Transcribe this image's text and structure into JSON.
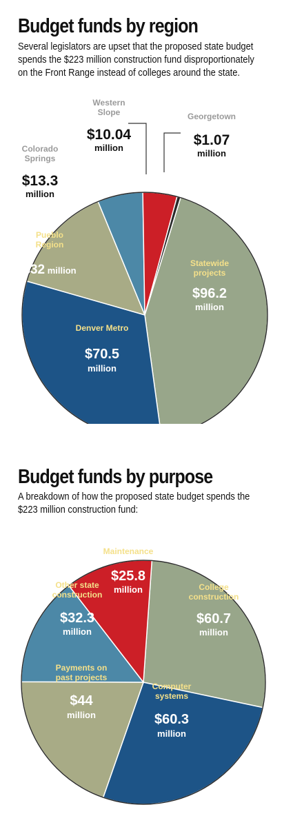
{
  "chart_data": [
    {
      "type": "pie",
      "title": "Budget funds by region",
      "subtitle": "Several legislators are upset that the proposed state budget spends the $223 million construction fund disproportionately on the Front Range instead of colleges around the state.",
      "unit": "million",
      "slices": [
        {
          "name": "Statewide projects",
          "value": 96.2,
          "value_label": "$96.2",
          "color": "#98a68a"
        },
        {
          "name": "Denver Metro",
          "value": 70.5,
          "value_label": "$70.5",
          "color": "#1d5487"
        },
        {
          "name": "Pueblo Region",
          "value": 32,
          "value_label": "$32",
          "color": "#a8ab86"
        },
        {
          "name": "Colorado Springs",
          "value": 13.3,
          "value_label": "$13.3",
          "color": "#4c88a7"
        },
        {
          "name": "Western Slope",
          "value": 10.04,
          "value_label": "$10.04",
          "color": "#cc1f27"
        },
        {
          "name": "Georgetown",
          "value": 1.07,
          "value_label": "$1.07",
          "color": "#2a2a2a"
        }
      ]
    },
    {
      "type": "pie",
      "title": "Budget funds by purpose",
      "subtitle": "A breakdown of how the proposed state budget spends the $223 million construction fund:",
      "unit": "million",
      "slices": [
        {
          "name": "College construction",
          "value": 60.7,
          "value_label": "$60.7",
          "color": "#98a68a"
        },
        {
          "name": "Computer systems",
          "value": 60.3,
          "value_label": "$60.3",
          "color": "#1d5487"
        },
        {
          "name": "Payments on past projects",
          "value": 44,
          "value_label": "$44",
          "color": "#a8ab86"
        },
        {
          "name": "Other state construction",
          "value": 32.3,
          "value_label": "$32.3",
          "color": "#4c88a7"
        },
        {
          "name": "Maintenance",
          "value": 25.8,
          "value_label": "$25.8",
          "color": "#cc1f27"
        }
      ]
    }
  ]
}
